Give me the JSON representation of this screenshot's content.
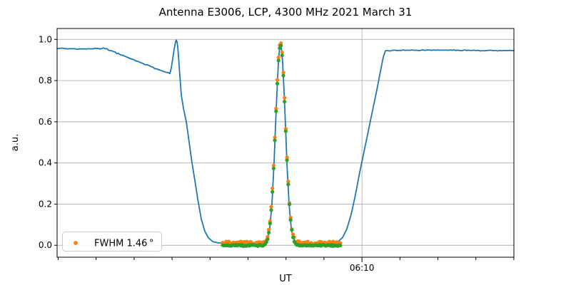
{
  "figure": {
    "background": "#ffffff"
  },
  "chart_data": {
    "type": "line+scatter",
    "title": "Antenna E3006, LCP, 4300 MHz 2021 March 31",
    "xlabel": "UT",
    "ylabel": "a.u.",
    "x_axis": {
      "note": "time axis; positions given as fraction 0..1 of plot width",
      "ticks": [
        {
          "f": 0.0023
        },
        {
          "f": 0.0854
        },
        {
          "f": 0.1686
        },
        {
          "f": 0.2517
        },
        {
          "f": 0.3348
        },
        {
          "f": 0.418
        },
        {
          "f": 0.5011
        },
        {
          "f": 0.5842
        },
        {
          "f": 0.6674,
          "label": "06:10",
          "major": true
        },
        {
          "f": 0.7505
        },
        {
          "f": 0.8336
        },
        {
          "f": 0.9168
        },
        {
          "f": 0.9999
        }
      ]
    },
    "y_axis": {
      "lim": [
        -0.058,
        1.053
      ],
      "ticks": [
        {
          "v": 0.0,
          "label": "0.0"
        },
        {
          "v": 0.2,
          "label": "0.2"
        },
        {
          "v": 0.4,
          "label": "0.4"
        },
        {
          "v": 0.6,
          "label": "0.6"
        },
        {
          "v": 0.8,
          "label": "0.8"
        },
        {
          "v": 1.0,
          "label": "1.0"
        }
      ]
    },
    "grid": {
      "color": "#b0b0b0",
      "horizontal": true,
      "vertical_on_major_xtick": true
    },
    "line_series": {
      "name": "drift-scan-signal",
      "color": "#1f77b4",
      "width": 1.8,
      "points": [
        [
          0.0,
          0.955
        ],
        [
          0.031,
          0.955
        ],
        [
          0.07,
          0.954
        ],
        [
          0.086,
          0.958
        ],
        [
          0.094,
          0.953
        ],
        [
          0.102,
          0.957
        ],
        [
          0.106,
          0.955
        ],
        [
          0.125,
          0.938
        ],
        [
          0.148,
          0.918
        ],
        [
          0.172,
          0.898
        ],
        [
          0.195,
          0.877
        ],
        [
          0.219,
          0.856
        ],
        [
          0.238,
          0.842
        ],
        [
          0.2473,
          0.836
        ],
        [
          0.25,
          0.862
        ],
        [
          0.2531,
          0.906
        ],
        [
          0.2563,
          0.952
        ],
        [
          0.2594,
          0.99
        ],
        [
          0.2617,
          1.0
        ],
        [
          0.2641,
          0.965
        ],
        [
          0.2664,
          0.9
        ],
        [
          0.2688,
          0.82
        ],
        [
          0.2719,
          0.73
        ],
        [
          0.2766,
          0.665
        ],
        [
          0.2828,
          0.6
        ],
        [
          0.2891,
          0.5
        ],
        [
          0.2953,
          0.4
        ],
        [
          0.3016,
          0.315
        ],
        [
          0.3078,
          0.225
        ],
        [
          0.3156,
          0.128
        ],
        [
          0.3234,
          0.068
        ],
        [
          0.3313,
          0.036
        ],
        [
          0.3406,
          0.018
        ],
        [
          0.3516,
          0.012
        ],
        [
          0.375,
          0.01
        ],
        [
          0.4219,
          0.009
        ],
        [
          0.4531,
          0.01
        ],
        [
          0.4609,
          0.03
        ],
        [
          0.4656,
          0.085
        ],
        [
          0.4703,
          0.2
        ],
        [
          0.475,
          0.4
        ],
        [
          0.4781,
          0.58
        ],
        [
          0.4813,
          0.745
        ],
        [
          0.4844,
          0.885
        ],
        [
          0.4867,
          0.955
        ],
        [
          0.4891,
          0.98
        ],
        [
          0.4914,
          0.955
        ],
        [
          0.4938,
          0.885
        ],
        [
          0.4969,
          0.745
        ],
        [
          0.5,
          0.58
        ],
        [
          0.5031,
          0.4
        ],
        [
          0.5078,
          0.2
        ],
        [
          0.5125,
          0.085
        ],
        [
          0.5172,
          0.032
        ],
        [
          0.5234,
          0.015
        ],
        [
          0.5391,
          0.011
        ],
        [
          0.5703,
          0.009
        ],
        [
          0.5938,
          0.009
        ],
        [
          0.6063,
          0.011
        ],
        [
          0.6156,
          0.018
        ],
        [
          0.625,
          0.038
        ],
        [
          0.6344,
          0.08
        ],
        [
          0.6438,
          0.15
        ],
        [
          0.6531,
          0.245
        ],
        [
          0.6625,
          0.355
        ],
        [
          0.6719,
          0.455
        ],
        [
          0.6813,
          0.555
        ],
        [
          0.6906,
          0.655
        ],
        [
          0.7,
          0.755
        ],
        [
          0.7078,
          0.845
        ],
        [
          0.7141,
          0.915
        ],
        [
          0.7188,
          0.945
        ],
        [
          0.75,
          0.947
        ],
        [
          0.8125,
          0.948
        ],
        [
          0.8906,
          0.947
        ],
        [
          0.9688,
          0.946
        ],
        [
          1.0,
          0.947
        ]
      ],
      "noise_spans": [
        {
          "from": 0.0,
          "to": 0.106,
          "amp": 0.0035
        },
        {
          "from": 0.106,
          "to": 0.247,
          "amp": 0.004
        },
        {
          "from": 0.7188,
          "to": 1.0,
          "amp": 0.003
        }
      ]
    },
    "scatter": {
      "sample_start_f": 0.3625,
      "sample_end_f": 0.6203,
      "sample_step_f": 0.002656,
      "gaussian_fit": {
        "center_f": 0.4891,
        "sigma_f": 0.0109,
        "amplitude": 0.972,
        "fwhm_deg": 1.46
      },
      "series": [
        {
          "name": "measured-points",
          "color": "#ff7f0e",
          "offset": 0.012,
          "jitter": 0.007,
          "radius": 2.6
        },
        {
          "name": "fit-points",
          "color": "#2ca02c",
          "offset": -0.001,
          "jitter": 0.0035,
          "radius": 2.6
        }
      ]
    },
    "legend": {
      "label": "FWHM 1.46 °",
      "marker_color": "#ff7f0e",
      "position": "lower left"
    },
    "axes_color": "#000000"
  }
}
